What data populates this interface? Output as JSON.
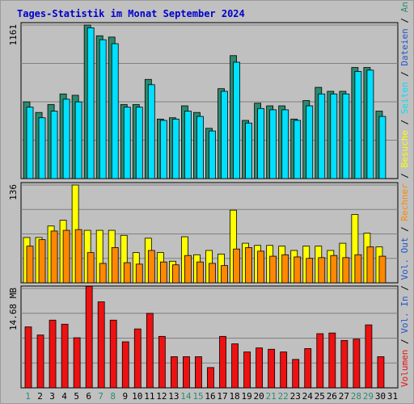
{
  "chart_data": {
    "type": "bar",
    "title": "Tages-Statistik im Monat September 2024",
    "categories": [
      "1",
      "2",
      "3",
      "4",
      "5",
      "6",
      "7",
      "8",
      "9",
      "10",
      "11",
      "12",
      "13",
      "14",
      "15",
      "16",
      "17",
      "18",
      "19",
      "20",
      "21",
      "22",
      "23",
      "24",
      "25",
      "26",
      "27",
      "28",
      "29",
      "30",
      "31"
    ],
    "weekend_days": [
      "1",
      "7",
      "8",
      "14",
      "15",
      "21",
      "22",
      "28",
      "29"
    ],
    "colors": {
      "anfragen": "#2d8a6e",
      "dateien": "#00e0ff",
      "besuche": "#ffff00",
      "rechner": "#ff8800",
      "volumen": "#ee1111",
      "weekday_label": "#000000",
      "weekend_label": "#2d8a6e",
      "grid": "#808080"
    },
    "panels": [
      {
        "id": "top",
        "ymax_label": "1161",
        "ymax": 1161,
        "series": [
          {
            "key": "anfragen",
            "values": [
              580,
              500,
              560,
              640,
              630,
              1161,
              1080,
              1070,
              560,
              560,
              750,
              450,
              460,
              550,
              500,
              380,
              680,
              930,
              440,
              570,
              550,
              550,
              450,
              590,
              690,
              660,
              660,
              840,
              840,
              510,
              null
            ]
          },
          {
            "key": "dateien",
            "values": [
              540,
              460,
              510,
              600,
              580,
              1140,
              1050,
              1020,
              540,
              540,
              710,
              440,
              450,
              510,
              470,
              360,
              660,
              880,
              420,
              530,
              520,
              520,
              440,
              550,
              640,
              640,
              640,
              810,
              820,
              470,
              null
            ]
          }
        ]
      },
      {
        "id": "middle",
        "ymax_label": "136",
        "ymax": 136,
        "series": [
          {
            "key": "besuche",
            "values": [
              63,
              63,
              79,
              87,
              136,
              73,
              73,
              73,
              66,
              42,
              62,
              42,
              30,
              64,
              39,
              45,
              40,
              101,
              55,
              52,
              52,
              51,
              45,
              51,
              51,
              45,
              55,
              95,
              69,
              50,
              null
            ]
          },
          {
            "key": "rechner",
            "values": [
              51,
              60,
              72,
              73,
              74,
              42,
              27,
              49,
              28,
              26,
              45,
              29,
              25,
              38,
              29,
              27,
              24,
              47,
              49,
              44,
              37,
              39,
              36,
              34,
              35,
              38,
              35,
              39,
              50,
              37,
              null
            ]
          }
        ]
      },
      {
        "id": "bottom",
        "ymax_label": "14.68 MB",
        "ymax": 14.68,
        "series": [
          {
            "key": "volumen",
            "values": [
              9.0,
              7.8,
              10.0,
              9.4,
              7.4,
              15.0,
              12.7,
              10.0,
              6.8,
              8.7,
              11.0,
              7.6,
              4.6,
              4.6,
              4.6,
              3.0,
              7.6,
              6.5,
              5.3,
              5.9,
              5.7,
              5.3,
              4.2,
              5.8,
              8.0,
              8.1,
              7.0,
              7.2,
              9.3,
              4.6,
              null
            ]
          }
        ]
      }
    ],
    "side_labels": [
      {
        "text": "Volumen",
        "color": "#ee1111"
      },
      {
        "text": " / ",
        "color": "#000000"
      },
      {
        "text": "Vol. In",
        "color": "#2255cc"
      },
      {
        "text": " / ",
        "color": "#000000"
      },
      {
        "text": "Vol. Out",
        "color": "#2255cc"
      },
      {
        "text": " / ",
        "color": "#000000"
      },
      {
        "text": "Rechner",
        "color": "#ff8800"
      },
      {
        "text": " / ",
        "color": "#000000"
      },
      {
        "text": "Besuche",
        "color": "#ffff00"
      },
      {
        "text": " / ",
        "color": "#000000"
      },
      {
        "text": "Seiten",
        "color": "#00e0ff"
      },
      {
        "text": " / ",
        "color": "#000000"
      },
      {
        "text": "Dateien",
        "color": "#2255cc"
      },
      {
        "text": " / ",
        "color": "#000000"
      },
      {
        "text": "Anfragen",
        "color": "#2d8a6e"
      }
    ],
    "grid": true,
    "legend": "right-vertical"
  }
}
